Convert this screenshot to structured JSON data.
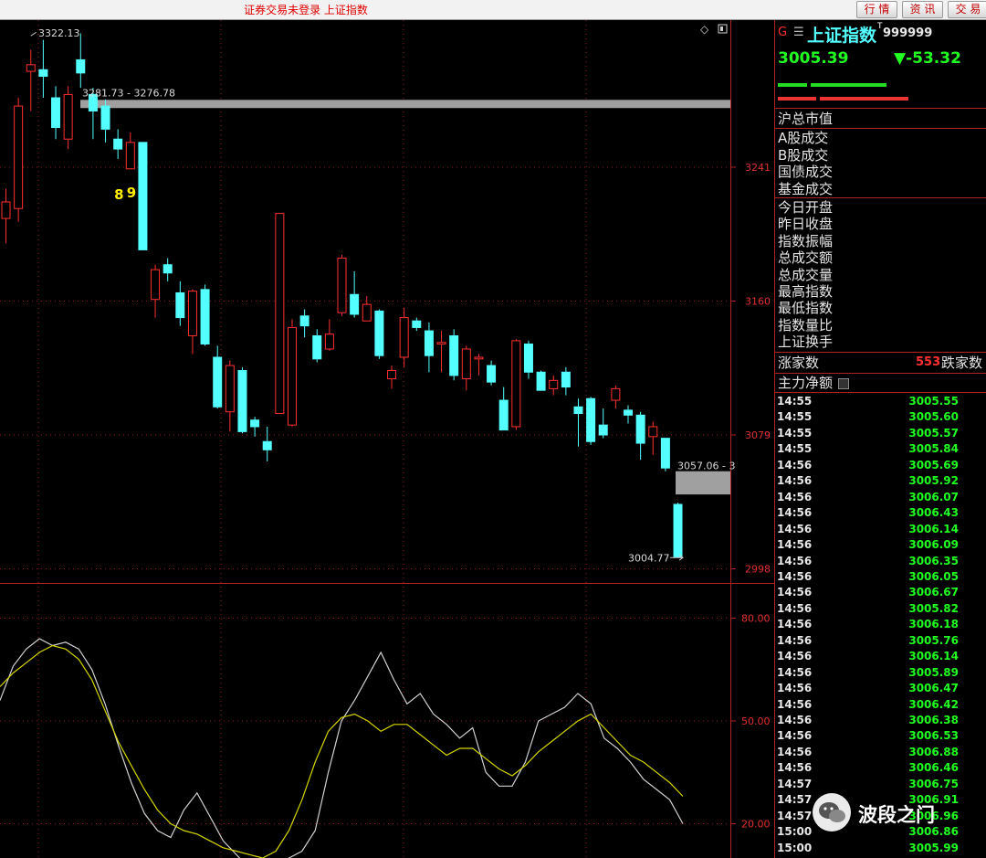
{
  "window_title": "证券交易未登录 上证指数",
  "top_buttons": [
    "行 情",
    "资 讯",
    "交 易"
  ],
  "quote": {
    "marker": "G",
    "marker2": "☰",
    "name": "上证指数",
    "superscript": "T",
    "code": "999999",
    "price": "3005.39",
    "change": "▼-53.32"
  },
  "stats_group1": [
    "沪总市值",
    "A股成交",
    "B股成交",
    "国债成交",
    "基金成交"
  ],
  "stats_group2": [
    "今日开盘",
    "昨日收盘",
    "指数振幅",
    "总成交额",
    "总成交量",
    "最高指数",
    "最低指数",
    "指数量比",
    "上证换手"
  ],
  "breadth": {
    "up_label": "涨家数",
    "up_value": "553",
    "down_label": "跌家数"
  },
  "main_flow_label": "主力净额",
  "ticks": [
    {
      "time": "14:55",
      "price": "3005.55"
    },
    {
      "time": "14:55",
      "price": "3005.60"
    },
    {
      "time": "14:55",
      "price": "3005.57"
    },
    {
      "time": "14:55",
      "price": "3005.84"
    },
    {
      "time": "14:56",
      "price": "3005.69"
    },
    {
      "time": "14:56",
      "price": "3005.92"
    },
    {
      "time": "14:56",
      "price": "3006.07"
    },
    {
      "time": "14:56",
      "price": "3006.43"
    },
    {
      "time": "14:56",
      "price": "3006.14"
    },
    {
      "time": "14:56",
      "price": "3006.09"
    },
    {
      "time": "14:56",
      "price": "3006.35"
    },
    {
      "time": "14:56",
      "price": "3006.05"
    },
    {
      "time": "14:56",
      "price": "3006.67"
    },
    {
      "time": "14:56",
      "price": "3005.82"
    },
    {
      "time": "14:56",
      "price": "3006.18"
    },
    {
      "time": "14:56",
      "price": "3005.76"
    },
    {
      "time": "14:56",
      "price": "3006.14"
    },
    {
      "time": "14:56",
      "price": "3005.89"
    },
    {
      "time": "14:56",
      "price": "3006.47"
    },
    {
      "time": "14:56",
      "price": "3006.42"
    },
    {
      "time": "14:56",
      "price": "3006.38"
    },
    {
      "time": "14:56",
      "price": "3006.53"
    },
    {
      "time": "14:56",
      "price": "3006.88"
    },
    {
      "time": "14:56",
      "price": "3006.46"
    },
    {
      "time": "14:57",
      "price": "3006.75"
    },
    {
      "time": "14:57",
      "price": "3006.91"
    },
    {
      "time": "14:57",
      "price": "3006.96"
    },
    {
      "time": "15:00",
      "price": "3006.86"
    },
    {
      "time": "15:00",
      "price": "3005.99"
    }
  ],
  "watermark": "波段之门",
  "colors": {
    "up": "#ff3030",
    "down": "#54ffff",
    "ma": "#d6d600",
    "k_line": "#d0d0d0",
    "grid": "#8b1a1a",
    "price": "#22ff22"
  },
  "chart_data": {
    "type": "candlestick",
    "y_axis_ticks": [
      "3241",
      "3160",
      "3079",
      "2998"
    ],
    "ylim": [
      2990,
      3330
    ],
    "annotations": {
      "high_label": "3322.13",
      "gap_top_label": "3281.73 - 3276.78",
      "gap_bottom_label": "3057.06 - 3",
      "low_label": "3004.77",
      "countdown": [
        "8",
        "9"
      ]
    },
    "gaps": [
      {
        "high": 3281.73,
        "low": 3276.78
      },
      {
        "high": 3057.06,
        "low": 3043
      }
    ],
    "candles": [
      {
        "o": 3210,
        "c": 3220,
        "h": 3228,
        "l": 3195
      },
      {
        "o": 3216,
        "c": 3278,
        "h": 3283,
        "l": 3208
      },
      {
        "o": 3299,
        "c": 3303,
        "h": 3312,
        "l": 3275
      },
      {
        "o": 3300,
        "c": 3296,
        "h": 3318,
        "l": 3283
      },
      {
        "o": 3283,
        "c": 3265,
        "h": 3290,
        "l": 3258
      },
      {
        "o": 3258,
        "c": 3285,
        "h": 3290,
        "l": 3252
      },
      {
        "o": 3306,
        "c": 3298,
        "h": 3322,
        "l": 3289
      },
      {
        "o": 3285,
        "c": 3275,
        "h": 3289,
        "l": 3258
      },
      {
        "o": 3278,
        "c": 3264,
        "h": 3282,
        "l": 3256
      },
      {
        "o": 3258,
        "c": 3252,
        "h": 3264,
        "l": 3246
      },
      {
        "o": 3240,
        "c": 3256,
        "h": 3262,
        "l": 3240
      },
      {
        "o": 3256,
        "c": 3191,
        "h": 3256,
        "l": 3191
      },
      {
        "o": 3161,
        "c": 3179,
        "h": 3182,
        "l": 3150
      },
      {
        "o": 3182,
        "c": 3177,
        "h": 3186,
        "l": 3172
      },
      {
        "o": 3165,
        "c": 3150,
        "h": 3172,
        "l": 3145
      },
      {
        "o": 3139,
        "c": 3166,
        "h": 3167,
        "l": 3128
      },
      {
        "o": 3167,
        "c": 3134,
        "h": 3170,
        "l": 3133
      },
      {
        "o": 3126,
        "c": 3096,
        "h": 3133,
        "l": 3095
      },
      {
        "o": 3093,
        "c": 3121,
        "h": 3124,
        "l": 3081
      },
      {
        "o": 3118,
        "c": 3081,
        "h": 3120,
        "l": 3080
      },
      {
        "o": 3088,
        "c": 3084,
        "h": 3090,
        "l": 3078
      },
      {
        "o": 3075,
        "c": 3070,
        "h": 3084,
        "l": 3063
      },
      {
        "o": 3092,
        "c": 3213,
        "h": 3213,
        "l": 3092
      },
      {
        "o": 3085,
        "c": 3144,
        "h": 3149,
        "l": 3084
      },
      {
        "o": 3151,
        "c": 3145,
        "h": 3155,
        "l": 3138
      },
      {
        "o": 3139,
        "c": 3125,
        "h": 3143,
        "l": 3123
      },
      {
        "o": 3131,
        "c": 3140,
        "h": 3149,
        "l": 3130
      },
      {
        "o": 3153,
        "c": 3186,
        "h": 3188,
        "l": 3151
      },
      {
        "o": 3164,
        "c": 3152,
        "h": 3178,
        "l": 3150
      },
      {
        "o": 3148,
        "c": 3158,
        "h": 3163,
        "l": 3149
      },
      {
        "o": 3154,
        "c": 3127,
        "h": 3155,
        "l": 3125
      },
      {
        "o": 3113,
        "c": 3118,
        "h": 3121,
        "l": 3107
      },
      {
        "o": 3126,
        "c": 3150,
        "h": 3156,
        "l": 3120
      },
      {
        "o": 3148,
        "c": 3144,
        "h": 3150,
        "l": 3142
      },
      {
        "o": 3142,
        "c": 3127,
        "h": 3147,
        "l": 3117
      },
      {
        "o": 3134,
        "c": 3135,
        "h": 3142,
        "l": 3117
      },
      {
        "o": 3139,
        "c": 3115,
        "h": 3143,
        "l": 3112
      },
      {
        "o": 3113,
        "c": 3131,
        "h": 3133,
        "l": 3106
      },
      {
        "o": 3125,
        "c": 3126,
        "h": 3128,
        "l": 3115
      },
      {
        "o": 3121,
        "c": 3111,
        "h": 3124,
        "l": 3109
      },
      {
        "o": 3100,
        "c": 3082,
        "h": 3108,
        "l": 3082
      },
      {
        "o": 3084,
        "c": 3136,
        "h": 3137,
        "l": 3082
      },
      {
        "o": 3134,
        "c": 3117,
        "h": 3136,
        "l": 3113
      },
      {
        "o": 3117,
        "c": 3106,
        "h": 3118,
        "l": 3106
      },
      {
        "o": 3107,
        "c": 3112,
        "h": 3115,
        "l": 3103
      },
      {
        "o": 3117,
        "c": 3108,
        "h": 3120,
        "l": 3103
      },
      {
        "o": 3096,
        "c": 3092,
        "h": 3101,
        "l": 3072
      },
      {
        "o": 3101,
        "c": 3075,
        "h": 3102,
        "l": 3073
      },
      {
        "o": 3085,
        "c": 3079,
        "h": 3095,
        "l": 3077
      },
      {
        "o": 3100,
        "c": 3107,
        "h": 3109,
        "l": 3095
      },
      {
        "o": 3094,
        "c": 3091,
        "h": 3097,
        "l": 3086
      },
      {
        "o": 3091,
        "c": 3074,
        "h": 3093,
        "l": 3064
      },
      {
        "o": 3078,
        "c": 3084,
        "h": 3087,
        "l": 3067
      },
      {
        "o": 3077,
        "c": 3059,
        "h": 3077,
        "l": 3057
      },
      {
        "o": 3037,
        "c": 3005,
        "h": 3038,
        "l": 3004.77
      }
    ],
    "indicator": {
      "y_axis_ticks": [
        "80.00",
        "50.00",
        "20.00"
      ],
      "ylim": [
        10,
        90
      ],
      "k": [
        56,
        66,
        71,
        74,
        72,
        73,
        71,
        65,
        55,
        43,
        32,
        23,
        18,
        16,
        24,
        29,
        22,
        15,
        11,
        7,
        7,
        8,
        10,
        12,
        18,
        35,
        50,
        56,
        63,
        70,
        62,
        55,
        58,
        52,
        49,
        45,
        48,
        35,
        31,
        31,
        38,
        50,
        52,
        54,
        58,
        55,
        45,
        42,
        38,
        33,
        30,
        27,
        20
      ],
      "d": [
        60,
        64,
        67,
        70,
        72,
        71,
        68,
        62,
        53,
        44,
        37,
        30,
        24,
        20,
        18,
        17,
        15,
        13,
        12,
        11,
        10,
        12,
        18,
        27,
        38,
        47,
        51,
        52,
        50,
        47,
        49,
        49,
        46,
        43,
        40,
        42,
        42,
        39,
        36,
        34,
        37,
        41,
        44,
        47,
        50,
        52,
        48,
        44,
        40,
        38,
        35,
        32,
        28
      ]
    }
  }
}
